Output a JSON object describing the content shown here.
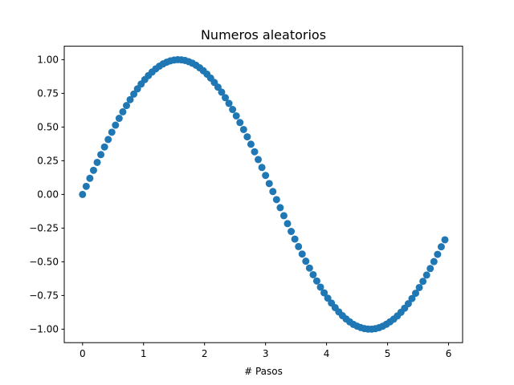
{
  "chart_data": {
    "type": "scatter",
    "title": "Numeros aleatorios",
    "xlabel": "# Pasos",
    "ylabel": "",
    "xlim": [
      -0.3,
      6.23
    ],
    "ylim": [
      -1.1,
      1.1
    ],
    "xticks": [
      0,
      1,
      2,
      3,
      4,
      5,
      6
    ],
    "yticks": [
      -1.0,
      -0.75,
      -0.5,
      -0.25,
      0.0,
      0.25,
      0.5,
      0.75,
      1.0
    ],
    "ytick_labels": [
      "−1.00",
      "−0.75",
      "−0.50",
      "−0.25",
      "0.00",
      "0.25",
      "0.50",
      "0.75",
      "1.00"
    ],
    "grid": false,
    "marker_color": "#1f77b4",
    "series": [
      {
        "x": [
          0.0,
          0.06,
          0.12,
          0.18,
          0.24,
          0.3,
          0.36,
          0.42,
          0.48,
          0.54,
          0.6,
          0.66,
          0.72,
          0.78,
          0.84,
          0.9,
          0.96,
          1.02,
          1.08,
          1.14,
          1.2,
          1.26,
          1.32,
          1.38,
          1.44,
          1.5,
          1.56,
          1.62,
          1.68,
          1.74,
          1.8,
          1.86,
          1.92,
          1.98,
          2.04,
          2.1,
          2.16,
          2.22,
          2.28,
          2.34,
          2.4,
          2.46,
          2.52,
          2.58,
          2.64,
          2.7,
          2.76,
          2.82,
          2.88,
          2.94,
          3.0,
          3.06,
          3.12,
          3.18,
          3.24,
          3.3,
          3.36,
          3.42,
          3.48,
          3.54,
          3.6,
          3.66,
          3.72,
          3.78,
          3.84,
          3.9,
          3.96,
          4.02,
          4.08,
          4.14,
          4.2,
          4.26,
          4.32,
          4.38,
          4.44,
          4.5,
          4.56,
          4.62,
          4.68,
          4.74,
          4.8,
          4.86,
          4.92,
          4.98,
          5.04,
          5.1,
          5.16,
          5.22,
          5.28,
          5.34,
          5.4,
          5.46,
          5.52,
          5.58,
          5.64,
          5.7,
          5.76,
          5.82,
          5.88,
          5.94
        ],
        "y": [
          0.0,
          0.06,
          0.1197,
          0.179,
          0.2377,
          0.2955,
          0.3523,
          0.4078,
          0.4618,
          0.5141,
          0.5646,
          0.6131,
          0.6594,
          0.7033,
          0.7446,
          0.7833,
          0.8192,
          0.8521,
          0.882,
          0.9086,
          0.932,
          0.9521,
          0.9687,
          0.9819,
          0.9915,
          0.9975,
          0.9999,
          0.9987,
          0.9939,
          0.9856,
          0.9738,
          0.9585,
          0.9398,
          0.9178,
          0.8925,
          0.8632,
          0.8312,
          0.7961,
          0.7589,
          0.7181,
          0.6755,
          0.6303,
          0.5828,
          0.5333,
          0.4818,
          0.4274,
          0.3726,
          0.3164,
          0.2588,
          0.2,
          0.1411,
          0.0807,
          0.0216,
          -0.0384,
          -0.0982,
          -0.1577,
          -0.2165,
          -0.2745,
          -0.3314,
          -0.3871,
          -0.4425,
          -0.4955,
          -0.5466,
          -0.5957,
          -0.6425,
          -0.6878,
          -0.7302,
          -0.7696,
          -0.8062,
          -0.84,
          -0.8716,
          -0.8995,
          -0.9243,
          -0.9459,
          -0.9642,
          -0.9775,
          -0.988,
          -0.9957,
          -0.9994,
          -0.9997,
          -0.9962,
          -0.9889,
          -0.9781,
          -0.9636,
          -0.9455,
          -0.9258,
          -0.9017,
          -0.8745,
          -0.8442,
          -0.8109,
          -0.7728,
          -0.7333,
          -0.6907,
          -0.6452,
          -0.5983,
          -0.5499,
          -0.4986,
          -0.4447,
          -0.3884,
          -0.3367
        ]
      }
    ]
  }
}
